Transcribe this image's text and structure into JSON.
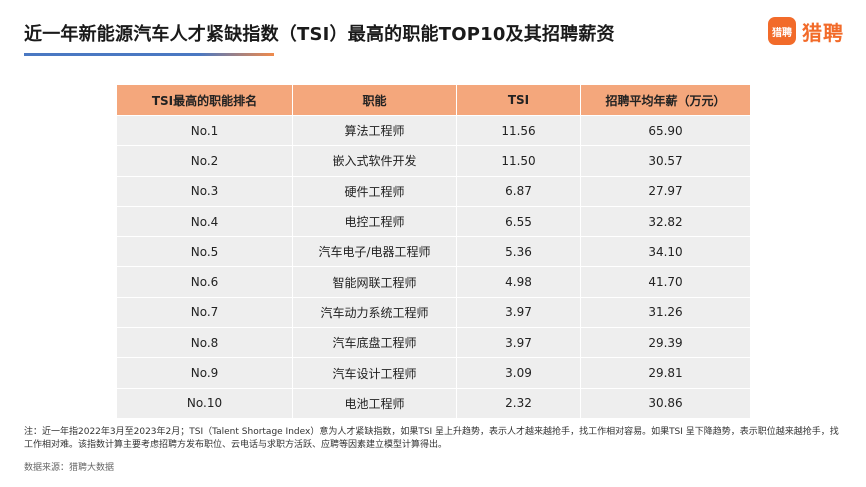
{
  "title": "近一年新能源汽车人才紧缺指数（TSI）最高的职能TOP10及其招聘薪资",
  "logo": {
    "badge": "猎聘",
    "text": "猎聘"
  },
  "table": {
    "headers": [
      "TSI最高的职能排名",
      "职能",
      "TSI",
      "招聘平均年薪（万元）"
    ],
    "rows": [
      [
        "No.1",
        "算法工程师",
        "11.56",
        "65.90"
      ],
      [
        "No.2",
        "嵌入式软件开发",
        "11.50",
        "30.57"
      ],
      [
        "No.3",
        "硬件工程师",
        "6.87",
        "27.97"
      ],
      [
        "No.4",
        "电控工程师",
        "6.55",
        "32.82"
      ],
      [
        "No.5",
        "汽车电子/电器工程师",
        "5.36",
        "34.10"
      ],
      [
        "No.6",
        "智能网联工程师",
        "4.98",
        "41.70"
      ],
      [
        "No.7",
        "汽车动力系统工程师",
        "3.97",
        "31.26"
      ],
      [
        "No.8",
        "汽车底盘工程师",
        "3.97",
        "29.39"
      ],
      [
        "No.9",
        "汽车设计工程师",
        "3.09",
        "29.81"
      ],
      [
        "No.10",
        "电池工程师",
        "2.32",
        "30.86"
      ]
    ]
  },
  "note": "注：近一年指2022年3月至2023年2月；TSI（Talent Shortage Index）意为人才紧缺指数，如果TSI 呈上升趋势，表示人才越来越抢手，找工作相对容易。如果TSI 呈下降趋势，表示职位越来越抢手，找工作相对难。该指数计算主要考虑招聘方发布职位、云电话与求职方活跃、应聘等因素建立模型计算得出。",
  "source": "数据来源：猎聘大数据"
}
